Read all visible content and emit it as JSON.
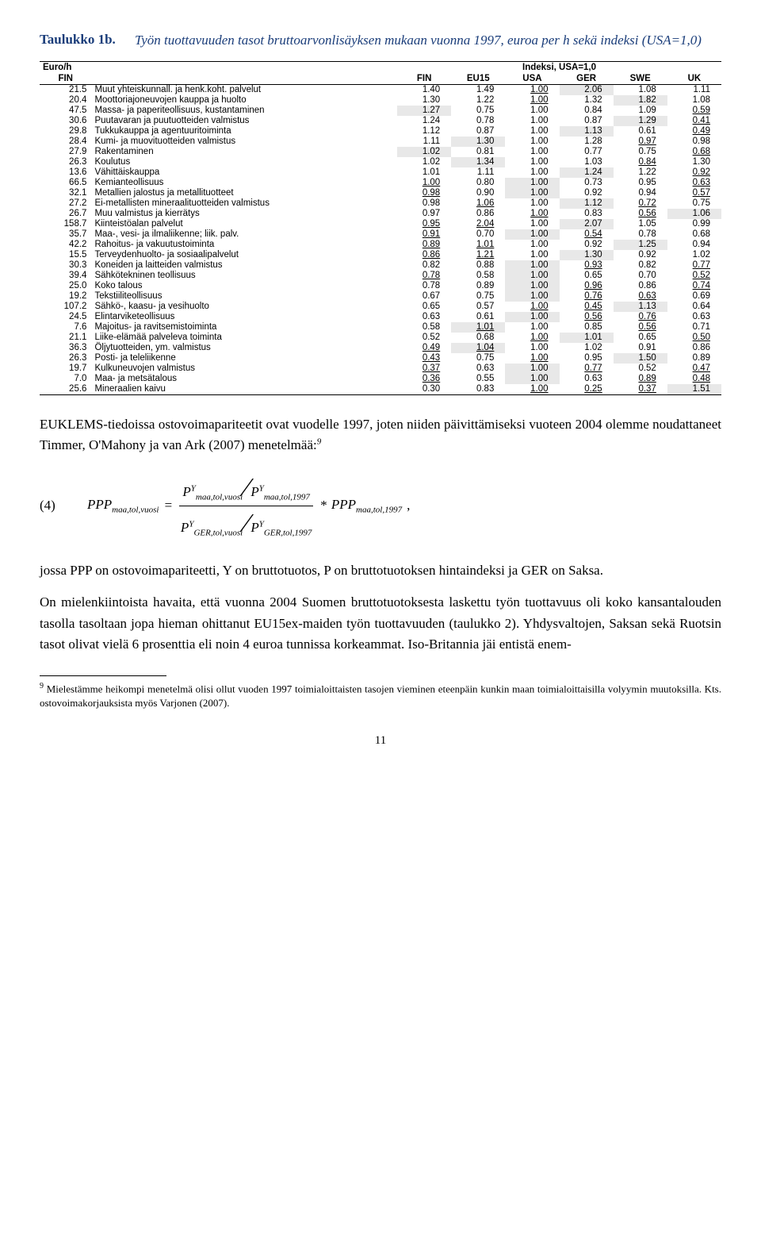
{
  "title_label": "Taulukko 1b.",
  "title_desc": "Työn tuottavuuden tasot bruttoarvonlisäyksen mukaan vuonna 1997, euroa per h sekä indeksi (USA=1,0)",
  "table": {
    "header1": {
      "euro": "Euro/h",
      "idx": "Indeksi, USA=1,0"
    },
    "header2": [
      "FIN",
      "",
      "FIN",
      "EU15",
      "USA",
      "GER",
      "SWE",
      "UK"
    ],
    "highlight_bg": "#e8e8e8",
    "rows": [
      {
        "c0": "21.5",
        "name": "Muut yhteiskunnall. ja henk.koht. palvelut",
        "v": [
          "1.40",
          "1.49",
          "1.00",
          "2.06",
          "1.08",
          "1.11"
        ],
        "hi": [
          0,
          0,
          0,
          1,
          0,
          0
        ],
        "u": [
          0,
          0,
          1,
          0,
          0,
          0
        ]
      },
      {
        "c0": "20.4",
        "name": "Moottoriajoneuvojen kauppa ja huolto",
        "v": [
          "1.30",
          "1.22",
          "1.00",
          "1.32",
          "1.82",
          "1.08"
        ],
        "hi": [
          0,
          0,
          0,
          0,
          1,
          0
        ],
        "u": [
          0,
          0,
          1,
          0,
          0,
          0
        ]
      },
      {
        "c0": "47.5",
        "name": "Massa- ja paperiteollisuus, kustantaminen",
        "v": [
          "1.27",
          "0.75",
          "1.00",
          "0.84",
          "1.09",
          "0.59"
        ],
        "hi": [
          1,
          0,
          0,
          0,
          0,
          0
        ],
        "u": [
          0,
          0,
          0,
          0,
          0,
          1
        ]
      },
      {
        "c0": "30.6",
        "name": "Puutavaran ja puutuotteiden valmistus",
        "v": [
          "1.24",
          "0.78",
          "1.00",
          "0.87",
          "1.29",
          "0.41"
        ],
        "hi": [
          0,
          0,
          0,
          0,
          1,
          0
        ],
        "u": [
          0,
          0,
          0,
          0,
          0,
          1
        ]
      },
      {
        "c0": "29.8",
        "name": "Tukkukauppa ja agentuuritoiminta",
        "v": [
          "1.12",
          "0.87",
          "1.00",
          "1.13",
          "0.61",
          "0.49"
        ],
        "hi": [
          0,
          0,
          0,
          1,
          0,
          0
        ],
        "u": [
          0,
          0,
          0,
          0,
          0,
          1
        ]
      },
      {
        "c0": "28.4",
        "name": "Kumi- ja muovituotteiden valmistus",
        "v": [
          "1.11",
          "1.30",
          "1.00",
          "1.28",
          "0.97",
          "0.98"
        ],
        "hi": [
          0,
          1,
          0,
          0,
          0,
          0
        ],
        "u": [
          0,
          0,
          0,
          0,
          1,
          0
        ]
      },
      {
        "c0": "27.9",
        "name": "Rakentaminen",
        "v": [
          "1.02",
          "0.81",
          "1.00",
          "0.77",
          "0.75",
          "0.68"
        ],
        "hi": [
          1,
          0,
          0,
          0,
          0,
          0
        ],
        "u": [
          0,
          0,
          0,
          0,
          0,
          1
        ]
      },
      {
        "c0": "26.3",
        "name": "Koulutus",
        "v": [
          "1.02",
          "1.34",
          "1.00",
          "1.03",
          "0.84",
          "1.30"
        ],
        "hi": [
          0,
          1,
          0,
          0,
          0,
          0
        ],
        "u": [
          0,
          0,
          0,
          0,
          1,
          0
        ]
      },
      {
        "c0": "13.6",
        "name": "Vähittäiskauppa",
        "v": [
          "1.01",
          "1.11",
          "1.00",
          "1.24",
          "1.22",
          "0.92"
        ],
        "hi": [
          0,
          0,
          0,
          1,
          0,
          0
        ],
        "u": [
          0,
          0,
          0,
          0,
          0,
          1
        ]
      },
      {
        "c0": "66.5",
        "name": "Kemianteollisuus",
        "v": [
          "1.00",
          "0.80",
          "1.00",
          "0.73",
          "0.95",
          "0.63"
        ],
        "hi": [
          0,
          0,
          1,
          0,
          0,
          0
        ],
        "u": [
          1,
          0,
          0,
          0,
          0,
          1
        ]
      },
      {
        "c0": "32.1",
        "name": "Metallien jalostus ja metallituotteet",
        "v": [
          "0.98",
          "0.90",
          "1.00",
          "0.92",
          "0.94",
          "0.57"
        ],
        "hi": [
          0,
          0,
          1,
          0,
          0,
          0
        ],
        "u": [
          1,
          0,
          0,
          0,
          0,
          1
        ]
      },
      {
        "c0": "27.2",
        "name": "Ei-metallisten mineraalituotteiden valmistus",
        "v": [
          "0.98",
          "1.06",
          "1.00",
          "1.12",
          "0.72",
          "0.75"
        ],
        "hi": [
          0,
          0,
          0,
          1,
          0,
          0
        ],
        "u": [
          0,
          1,
          0,
          0,
          1,
          0
        ]
      },
      {
        "c0": "26.7",
        "name": "Muu valmistus ja kierrätys",
        "v": [
          "0.97",
          "0.86",
          "1.00",
          "0.83",
          "0.56",
          "1.06"
        ],
        "hi": [
          0,
          0,
          0,
          0,
          0,
          1
        ],
        "u": [
          0,
          0,
          1,
          0,
          1,
          0
        ]
      },
      {
        "c0": "158.7",
        "name": "Kiinteistöalan palvelut",
        "v": [
          "0.95",
          "2.04",
          "1.00",
          "2.07",
          "1.05",
          "0.99"
        ],
        "hi": [
          0,
          0,
          0,
          1,
          0,
          0
        ],
        "u": [
          1,
          1,
          0,
          0,
          0,
          0
        ]
      },
      {
        "c0": "35.7",
        "name": "Maa-, vesi- ja ilmaliikenne; liik. palv.",
        "v": [
          "0.91",
          "0.70",
          "1.00",
          "0.54",
          "0.78",
          "0.68"
        ],
        "hi": [
          0,
          0,
          1,
          0,
          0,
          0
        ],
        "u": [
          1,
          0,
          0,
          1,
          0,
          0
        ]
      },
      {
        "c0": "42.2",
        "name": "Rahoitus- ja vakuutustoiminta",
        "v": [
          "0.89",
          "1.01",
          "1.00",
          "0.92",
          "1.25",
          "0.94"
        ],
        "hi": [
          0,
          0,
          0,
          0,
          1,
          0
        ],
        "u": [
          1,
          1,
          0,
          0,
          0,
          0
        ]
      },
      {
        "c0": "15.5",
        "name": "Terveydenhuolto- ja sosiaalipalvelut",
        "v": [
          "0.86",
          "1.21",
          "1.00",
          "1.30",
          "0.92",
          "1.02"
        ],
        "hi": [
          0,
          0,
          0,
          1,
          0,
          0
        ],
        "u": [
          1,
          1,
          0,
          0,
          0,
          0
        ]
      },
      {
        "c0": "30.3",
        "name": "Koneiden ja laitteiden valmistus",
        "v": [
          "0.82",
          "0.88",
          "1.00",
          "0.93",
          "0.82",
          "0.77"
        ],
        "hi": [
          0,
          0,
          1,
          0,
          0,
          0
        ],
        "u": [
          0,
          0,
          0,
          1,
          0,
          1
        ]
      },
      {
        "c0": "39.4",
        "name": "Sähkötekninen teollisuus",
        "v": [
          "0.78",
          "0.58",
          "1.00",
          "0.65",
          "0.70",
          "0.52"
        ],
        "hi": [
          0,
          0,
          1,
          0,
          0,
          0
        ],
        "u": [
          1,
          0,
          0,
          0,
          0,
          1
        ]
      },
      {
        "c0": "25.0",
        "name": "Koko talous",
        "v": [
          "0.78",
          "0.89",
          "1.00",
          "0.96",
          "0.86",
          "0.74"
        ],
        "hi": [
          0,
          0,
          1,
          0,
          0,
          0
        ],
        "u": [
          0,
          0,
          0,
          1,
          0,
          1
        ]
      },
      {
        "c0": "19.2",
        "name": "Tekstiiliteollisuus",
        "v": [
          "0.67",
          "0.75",
          "1.00",
          "0.76",
          "0.63",
          "0.69"
        ],
        "hi": [
          0,
          0,
          1,
          0,
          0,
          0
        ],
        "u": [
          0,
          0,
          0,
          1,
          1,
          0
        ]
      },
      {
        "c0": "107.2",
        "name": "Sähkö-, kaasu- ja vesihuolto",
        "v": [
          "0.65",
          "0.57",
          "1.00",
          "0.45",
          "1.13",
          "0.64"
        ],
        "hi": [
          0,
          0,
          0,
          0,
          1,
          0
        ],
        "u": [
          0,
          0,
          1,
          1,
          0,
          0
        ]
      },
      {
        "c0": "24.5",
        "name": "Elintarviketeollisuus",
        "v": [
          "0.63",
          "0.61",
          "1.00",
          "0.56",
          "0.76",
          "0.63"
        ],
        "hi": [
          0,
          0,
          1,
          0,
          0,
          0
        ],
        "u": [
          0,
          0,
          0,
          1,
          1,
          0
        ]
      },
      {
        "c0": "7.6",
        "name": "Majoitus- ja ravitsemistoiminta",
        "v": [
          "0.58",
          "1.01",
          "1.00",
          "0.85",
          "0.56",
          "0.71"
        ],
        "hi": [
          0,
          1,
          0,
          0,
          0,
          0
        ],
        "u": [
          0,
          1,
          0,
          0,
          1,
          0
        ]
      },
      {
        "c0": "21.1",
        "name": "Liike-elämää palveleva toiminta",
        "v": [
          "0.52",
          "0.68",
          "1.00",
          "1.01",
          "0.65",
          "0.50"
        ],
        "hi": [
          0,
          0,
          0,
          1,
          0,
          0
        ],
        "u": [
          0,
          0,
          1,
          0,
          0,
          1
        ]
      },
      {
        "c0": "36.3",
        "name": "Öljytuotteiden, ym. valmistus",
        "v": [
          "0.49",
          "1.04",
          "1.00",
          "1.02",
          "0.91",
          "0.86"
        ],
        "hi": [
          0,
          1,
          0,
          0,
          0,
          0
        ],
        "u": [
          1,
          1,
          0,
          0,
          0,
          0
        ]
      },
      {
        "c0": "26.3",
        "name": "Posti- ja teleliikenne",
        "v": [
          "0.43",
          "0.75",
          "1.00",
          "0.95",
          "1.50",
          "0.89"
        ],
        "hi": [
          0,
          0,
          0,
          0,
          1,
          0
        ],
        "u": [
          1,
          0,
          1,
          0,
          0,
          0
        ]
      },
      {
        "c0": "19.7",
        "name": "Kulkuneuvojen valmistus",
        "v": [
          "0.37",
          "0.63",
          "1.00",
          "0.77",
          "0.52",
          "0.47"
        ],
        "hi": [
          0,
          0,
          1,
          0,
          0,
          0
        ],
        "u": [
          1,
          0,
          0,
          1,
          0,
          1
        ]
      },
      {
        "c0": "7.0",
        "name": "Maa- ja metsätalous",
        "v": [
          "0.36",
          "0.55",
          "1.00",
          "0.63",
          "0.89",
          "0.48"
        ],
        "hi": [
          0,
          0,
          1,
          0,
          0,
          0
        ],
        "u": [
          1,
          0,
          0,
          0,
          1,
          1
        ]
      },
      {
        "c0": "25.6",
        "name": "Mineraalien kaivu",
        "v": [
          "0.30",
          "0.83",
          "1.00",
          "0.25",
          "0.37",
          "1.51"
        ],
        "hi": [
          0,
          0,
          0,
          0,
          0,
          1
        ],
        "u": [
          0,
          0,
          1,
          1,
          1,
          0
        ]
      }
    ]
  },
  "para1": "EUKLEMS-tiedoissa ostovoimapariteetit ovat vuodelle 1997, joten niiden päivittämiseksi vuoteen 2004 olemme noudattaneet Timmer, O'Mahony ja van Ark (2007) menetelmää:",
  "fn_marker_para1": "9",
  "eqn_num": "(4)",
  "formula": {
    "lhs": "PPP",
    "lhs_sub": "maa,tol,vuosi",
    "n1": "P",
    "n1_sup": "Y",
    "n1_sub": "maa,tol,vuosi",
    "n2": "P",
    "n2_sup": "Y",
    "n2_sub": "maa,tol,1997",
    "d1": "P",
    "d1_sup": "Y",
    "d1_sub": "GER,tol,vuosi",
    "d2": "P",
    "d2_sup": "Y",
    "d2_sub": "GER,tol,1997",
    "rhs": "PPP",
    "rhs_sub": "maa,tol,1997"
  },
  "para2": "jossa PPP on ostovoimapariteetti, Y on bruttotuotos, P on bruttotuotoksen hintaindeksi ja GER on Saksa.",
  "para3": "On mielenkiintoista havaita, että vuonna 2004 Suomen bruttotuotoksesta laskettu työn tuottavuus oli koko kansantalouden tasolla tasoltaan jopa hieman ohittanut EU15ex-maiden työn tuottavuuden (taulukko 2). Yhdysvaltojen, Saksan sekä Ruotsin tasot olivat vielä 6 prosenttia eli noin 4 euroa tunnissa korkeammat. Iso-Britannia jäi entistä enem-",
  "footnote_num": "9",
  "footnote": " Mielestämme heikompi menetelmä olisi ollut vuoden 1997 toimialoittaisten tasojen vieminen eteenpäin kunkin maan toimialoittaisilla volyymin muutoksilla. Kts. ostovoimakorjauksista myös Varjonen (2007).",
  "page": "11"
}
